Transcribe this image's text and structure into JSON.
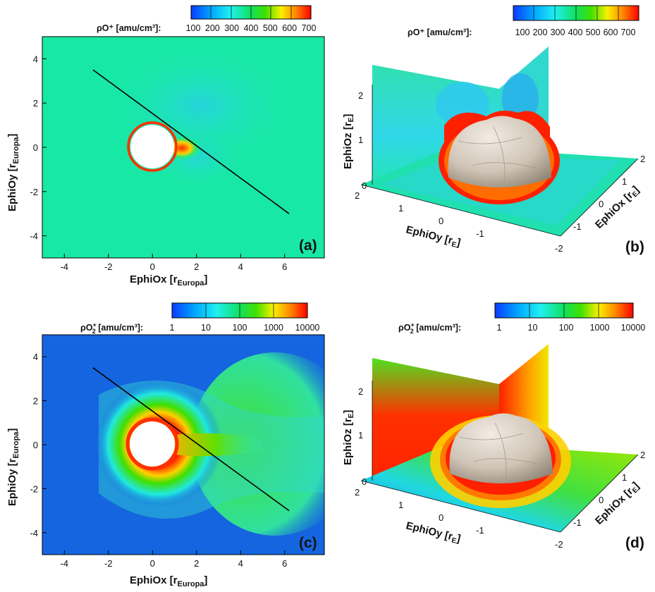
{
  "chart_data": [
    {
      "panel": "(a)",
      "type": "heatmap",
      "colorbar_label": "ρO⁺ [amu/cm³]:",
      "colorbar_ticks": [
        "100",
        "200",
        "300",
        "400",
        "500",
        "600",
        "700"
      ],
      "colorbar_range": [
        100,
        700
      ],
      "xlabel": "EphiOx [r",
      "xlabel_sub": "Europa",
      "ylabel": "EphiOy [r",
      "ylabel_sub": "Europa",
      "xlim": [
        -5,
        7.8
      ],
      "ylim": [
        -5,
        5
      ],
      "xticks": [
        -4,
        -2,
        0,
        2,
        4,
        6
      ],
      "yticks": [
        -4,
        -2,
        0,
        2,
        4
      ],
      "line": [
        [
          -2.7,
          3.5
        ],
        [
          6.2,
          -3.0
        ]
      ],
      "moon_radius": 1,
      "colors": {
        "background": "#18e8a6",
        "wake": "#ff2a00"
      }
    },
    {
      "panel": "(b)",
      "type": "surface3d",
      "colorbar_label": "ρO⁺ [amu/cm³]:",
      "colorbar_ticks": [
        "100",
        "200",
        "300",
        "400",
        "500",
        "600",
        "700"
      ],
      "xlabel": "EphiOx [r",
      "xlabel_sub": "E",
      "ylabel": "EphiOy [r",
      "ylabel_sub": "E",
      "zlabel": "EphiOz [r",
      "zlabel_sub": "E",
      "xticks": [
        "2",
        "1",
        "0",
        "-1",
        "-2"
      ],
      "yticks": [
        "2",
        "1",
        "0",
        "-1"
      ],
      "zticks": [
        "2",
        "1",
        "0"
      ]
    },
    {
      "panel": "(c)",
      "type": "heatmap",
      "colorbar_label": "ρO",
      "colorbar_label_sub": "2",
      "colorbar_label_sup": "+",
      "colorbar_label_rest": " [amu/cm³]:",
      "colorbar_ticks": [
        "1",
        "10",
        "100",
        "1000",
        "10000"
      ],
      "colorbar_scale": "log",
      "xlabel": "EphiOx [r",
      "xlabel_sub": "Europa",
      "ylabel": "EphiOy [r",
      "ylabel_sub": "Europa",
      "xlim": [
        -5,
        7.8
      ],
      "ylim": [
        -5,
        5
      ],
      "xticks": [
        -4,
        -2,
        0,
        2,
        4,
        6
      ],
      "yticks": [
        -4,
        -2,
        0,
        2,
        4
      ],
      "line": [
        [
          -2.7,
          3.5
        ],
        [
          6.2,
          -3.0
        ]
      ],
      "moon_radius": 1,
      "colors": {
        "background": "#1565e0",
        "halo": "#ff3a00"
      }
    },
    {
      "panel": "(d)",
      "type": "surface3d",
      "colorbar_label": "ρO",
      "colorbar_label_sub": "2",
      "colorbar_label_sup": "+",
      "colorbar_label_rest": " [amu/cm³]:",
      "colorbar_ticks": [
        "1",
        "10",
        "100",
        "1000",
        "10000"
      ],
      "xlabel": "EphiOx [r",
      "xlabel_sub": "E",
      "ylabel": "EphiOy [r",
      "ylabel_sub": "E",
      "zlabel": "EphiOz [r",
      "zlabel_sub": "E",
      "xticks": [
        "2",
        "1",
        "0",
        "-1",
        "-2"
      ],
      "yticks": [
        "2",
        "1",
        "0",
        "-1"
      ],
      "zticks": [
        "2",
        "1",
        "0"
      ]
    }
  ]
}
